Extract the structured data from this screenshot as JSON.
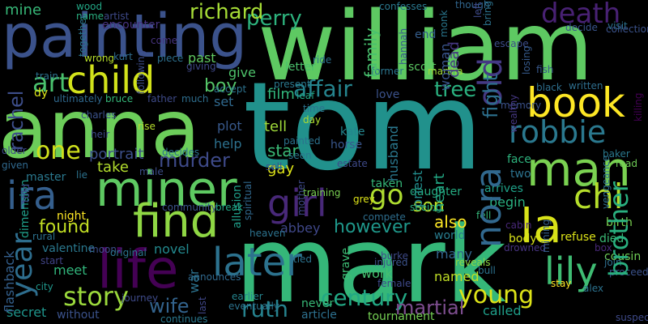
{
  "words": [
    {
      "text": "tom",
      "color": "#21918c"
    },
    {
      "text": "mark",
      "color": "#35b779"
    },
    {
      "text": "william",
      "color": "#5ec962"
    },
    {
      "text": "anna",
      "color": "#6ccd5a"
    },
    {
      "text": "painting",
      "color": "#3b528b"
    },
    {
      "text": "life",
      "color": "#440154"
    },
    {
      "text": "miner",
      "color": "#5ec962"
    },
    {
      "text": "find",
      "color": "#8fd744"
    },
    {
      "text": "man",
      "color": "#7ad151"
    },
    {
      "text": "book",
      "color": "#fde725"
    },
    {
      "text": "child",
      "color": "#d2e21b"
    },
    {
      "text": "la",
      "color": "#d8e219"
    },
    {
      "text": "lily",
      "color": "#3fbc73"
    },
    {
      "text": "nora",
      "color": "#31688e"
    },
    {
      "text": "old",
      "color": "#443983"
    },
    {
      "text": "later",
      "color": "#2c728e"
    },
    {
      "text": "girl",
      "color": "#482878"
    },
    {
      "text": "ira",
      "color": "#355f8d"
    },
    {
      "text": "chi",
      "color": "#b5de2b"
    },
    {
      "text": "year",
      "color": "#2e6e8e"
    },
    {
      "text": "robbie",
      "color": "#2a788e"
    },
    {
      "text": "death",
      "color": "#482173"
    },
    {
      "text": "story",
      "color": "#9bd93c"
    },
    {
      "text": "ruth",
      "color": "#26828e"
    },
    {
      "text": "century",
      "color": "#22a884"
    },
    {
      "text": "young",
      "color": "#dde318"
    },
    {
      "text": "brother",
      "color": "#29af7f"
    },
    {
      "text": "murder",
      "color": "#3e4a89"
    },
    {
      "text": "affair",
      "color": "#25848e"
    },
    {
      "text": "tree",
      "color": "#2ab07f"
    },
    {
      "text": "art",
      "color": "#4ac16d"
    },
    {
      "text": "one",
      "color": "#d0e11c"
    },
    {
      "text": "perry",
      "color": "#2db27d"
    },
    {
      "text": "richard",
      "color": "#a5db36"
    },
    {
      "text": "rachel",
      "color": "#3d4e8a"
    },
    {
      "text": "wife",
      "color": "#33638d"
    },
    {
      "text": "found",
      "color": "#c2df23"
    },
    {
      "text": "however",
      "color": "#1f988b"
    },
    {
      "text": "go",
      "color": "#addc30"
    },
    {
      "text": "fight",
      "color": "#2d708e"
    },
    {
      "text": "boy",
      "color": "#54c568"
    },
    {
      "text": "martial",
      "color": "#7e4e90"
    },
    {
      "text": "mine",
      "color": "#37b878"
    },
    {
      "text": "family",
      "color": "#48c16e"
    },
    {
      "text": "son",
      "color": "#b8de29"
    },
    {
      "text": "also",
      "color": "#fde725"
    },
    {
      "text": "star",
      "color": "#3aba76"
    },
    {
      "text": "film",
      "color": "#31b57b"
    },
    {
      "text": "tell",
      "color": "#9fda3a"
    },
    {
      "text": "portrait",
      "color": "#3c4f8a"
    },
    {
      "text": "take",
      "color": "#b2dd2d"
    },
    {
      "text": "help",
      "color": "#2d718e"
    },
    {
      "text": "plot",
      "color": "#38598c"
    },
    {
      "text": "dead",
      "color": "#453781"
    },
    {
      "text": "woman",
      "color": "#39558c"
    },
    {
      "text": "named",
      "color": "#c0df25"
    },
    {
      "text": "many",
      "color": "#32658e"
    },
    {
      "text": "daughter",
      "color": "#25ac82"
    },
    {
      "text": "called",
      "color": "#1f9e89"
    },
    {
      "text": "world",
      "color": "#287c8e"
    },
    {
      "text": "work",
      "color": "#45bf70"
    },
    {
      "text": "abbey",
      "color": "#3f4788"
    },
    {
      "text": "meet",
      "color": "#31b57b"
    },
    {
      "text": "novel",
      "color": "#23898e"
    },
    {
      "text": "war",
      "color": "#2c728e"
    },
    {
      "text": "past",
      "color": "#60ca60"
    },
    {
      "text": "give",
      "color": "#4ec36b"
    },
    {
      "text": "set",
      "color": "#30698e"
    },
    {
      "text": "night",
      "color": "#fde725"
    },
    {
      "text": "master",
      "color": "#2a788e"
    },
    {
      "text": "begin",
      "color": "#29af7f"
    },
    {
      "text": "arrives",
      "color": "#1fa188"
    },
    {
      "text": "died",
      "color": "#3aba76"
    },
    {
      "text": "birth",
      "color": "#7ad151"
    },
    {
      "text": "cousin",
      "color": "#70cf57"
    },
    {
      "text": "flashback",
      "color": "#34608d"
    },
    {
      "text": "secret",
      "color": "#1f958b"
    },
    {
      "text": "without",
      "color": "#3b528b"
    },
    {
      "text": "earlier",
      "color": "#25858e"
    },
    {
      "text": "never",
      "color": "#38b977"
    },
    {
      "text": "article",
      "color": "#2d708e"
    },
    {
      "text": "tournament",
      "color": "#75d054"
    },
    {
      "text": "heart",
      "color": "#22a884"
    },
    {
      "text": "priest",
      "color": "#228d8d"
    },
    {
      "text": "husband",
      "color": "#2a778e"
    },
    {
      "text": "grave",
      "color": "#3dbc74"
    },
    {
      "text": "end",
      "color": "#355e8d"
    },
    {
      "text": "letter",
      "color": "#4ac16d"
    },
    {
      "text": "scott",
      "color": "#5cc863"
    },
    {
      "text": "encounter",
      "color": "#46337f"
    },
    {
      "text": "gay",
      "color": "#dde318"
    },
    {
      "text": "kate",
      "color": "#24868e"
    },
    {
      "text": "horse",
      "color": "#39568c"
    },
    {
      "text": "estate",
      "color": "#3e4a89"
    },
    {
      "text": "love",
      "color": "#3b528b"
    },
    {
      "text": "dimension",
      "color": "#1f9e89"
    },
    {
      "text": "valentine",
      "color": "#2a788e"
    },
    {
      "text": "start",
      "color": "#414487"
    },
    {
      "text": "city",
      "color": "#1f968b"
    },
    {
      "text": "last",
      "color": "#3f4788"
    },
    {
      "text": "mining",
      "color": "#355f8d"
    },
    {
      "text": "baker",
      "color": "#2a788e"
    },
    {
      "text": "read",
      "color": "#70cf57"
    },
    {
      "text": "face",
      "color": "#2db27d"
    },
    {
      "text": "two",
      "color": "#2c728e"
    },
    {
      "text": "vengeance",
      "color": "#2d708e"
    },
    {
      "text": "killing",
      "color": "#440154"
    },
    {
      "text": "mother",
      "color": "#3e4989"
    },
    {
      "text": "confesses",
      "color": "#2a788e"
    },
    {
      "text": "monk",
      "color": "#2a778e"
    },
    {
      "text": "escape",
      "color": "#3d4e8a"
    },
    {
      "text": "hannah",
      "color": "#38598c"
    },
    {
      "text": "martha",
      "color": "#a0da39"
    },
    {
      "text": "ride",
      "color": "#2c718e"
    },
    {
      "text": "wood",
      "color": "#22a785"
    },
    {
      "text": "name",
      "color": "#29af7f"
    },
    {
      "text": "artist",
      "color": "#3e4a89"
    },
    {
      "text": "together",
      "color": "#2b748e"
    },
    {
      "text": "visit",
      "color": "#2c728e"
    },
    {
      "text": "collection",
      "color": "#3b528b"
    },
    {
      "text": "decide",
      "color": "#39558c"
    },
    {
      "text": "though",
      "color": "#31668e"
    },
    {
      "text": "left",
      "color": "#3e4a89"
    },
    {
      "text": "bring",
      "color": "#2c738e"
    },
    {
      "text": "come",
      "color": "#46337f"
    },
    {
      "text": "piece",
      "color": "#2d708e"
    },
    {
      "text": "kurt",
      "color": "#2f6c8e"
    },
    {
      "text": "wrong",
      "color": "#b5de2b"
    },
    {
      "text": "train",
      "color": "#2c728e"
    },
    {
      "text": "following",
      "color": "#3d4d8a"
    },
    {
      "text": "giving",
      "color": "#3f4788"
    },
    {
      "text": "losing",
      "color": "#375b8d"
    },
    {
      "text": "fish",
      "color": "#38598c"
    },
    {
      "text": "former",
      "color": "#2b758e"
    },
    {
      "text": "memory",
      "color": "#3b528b"
    },
    {
      "text": "black",
      "color": "#2e6f8e"
    },
    {
      "text": "wealthy",
      "color": "#453781"
    },
    {
      "text": "written",
      "color": "#2e6e8e"
    },
    {
      "text": "present",
      "color": "#2a788e"
    },
    {
      "text": "leaf",
      "color": "#22a785"
    },
    {
      "text": "time",
      "color": "#2c728e"
    },
    {
      "text": "day",
      "color": "#addc30"
    },
    {
      "text": "accept",
      "color": "#2c728e"
    },
    {
      "text": "ultimately",
      "color": "#30698e"
    },
    {
      "text": "dy",
      "color": "#dde318"
    },
    {
      "text": "bruce",
      "color": "#35b779"
    },
    {
      "text": "father",
      "color": "#3e4a89"
    },
    {
      "text": "much",
      "color": "#2e6e8e"
    },
    {
      "text": "charles",
      "color": "#3b528b"
    },
    {
      "text": "heir",
      "color": "#3e4989"
    },
    {
      "text": "rise",
      "color": "#b5de2b"
    },
    {
      "text": "decides",
      "color": "#2c728e"
    },
    {
      "text": "painted",
      "color": "#2c728e"
    },
    {
      "text": "sell",
      "color": "#3b528b"
    },
    {
      "text": "seen",
      "color": "#2a788e"
    },
    {
      "text": "older",
      "color": "#3e4a89"
    },
    {
      "text": "given",
      "color": "#30698e"
    },
    {
      "text": "lie",
      "color": "#2c728e"
    },
    {
      "text": "told",
      "color": "#3f4788"
    },
    {
      "text": "male",
      "color": "#3d4e8a"
    },
    {
      "text": "training",
      "color": "#7ad151"
    },
    {
      "text": "grey",
      "color": "#dde318"
    },
    {
      "text": "taken",
      "color": "#35b779"
    },
    {
      "text": "compete",
      "color": "#2e6e8e"
    },
    {
      "text": "seeing",
      "color": "#29af7f"
    },
    {
      "text": "fell",
      "color": "#35b779"
    },
    {
      "text": "cabin",
      "color": "#482878"
    },
    {
      "text": "refuse",
      "color": "#dde318"
    },
    {
      "text": "box",
      "color": "#482878"
    },
    {
      "text": "join",
      "color": "#2e6e8e"
    },
    {
      "text": "rural",
      "color": "#2c728e"
    },
    {
      "text": "community",
      "color": "#3b528b"
    },
    {
      "text": "break",
      "color": "#22a785"
    },
    {
      "text": "announces",
      "color": "#30698e"
    },
    {
      "text": "journey",
      "color": "#3e4a89"
    },
    {
      "text": "moon",
      "color": "#3d4e8a"
    },
    {
      "text": "original",
      "color": "#2b748e"
    },
    {
      "text": "heaven",
      "color": "#2c728e"
    },
    {
      "text": "allusion",
      "color": "#1f9e89"
    },
    {
      "text": "spiritual",
      "color": "#31688e"
    },
    {
      "text": "tied",
      "color": "#2c728e"
    },
    {
      "text": "burke",
      "color": "#3e4a89"
    },
    {
      "text": "injured",
      "color": "#3b528b"
    },
    {
      "text": "reveals",
      "color": "#8fd744"
    },
    {
      "text": "bull",
      "color": "#2c728e"
    },
    {
      "text": "female",
      "color": "#3e4989"
    },
    {
      "text": "body",
      "color": "#d8e219"
    },
    {
      "text": "drowned",
      "color": "#46337f"
    },
    {
      "text": "stay",
      "color": "#fde725"
    },
    {
      "text": "alex",
      "color": "#2c728e"
    },
    {
      "text": "proceeds",
      "color": "#3b528b"
    },
    {
      "text": "suspect",
      "color": "#3e4a89"
    },
    {
      "text": "continues",
      "color": "#2a788e"
    },
    {
      "text": "eventually",
      "color": "#2c728e"
    }
  ]
}
